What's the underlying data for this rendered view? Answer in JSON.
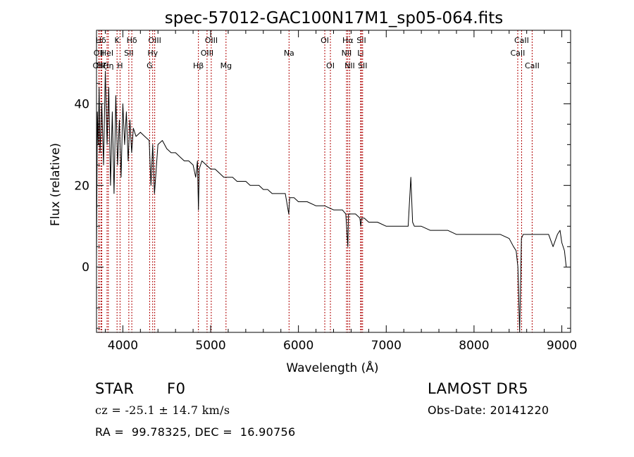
{
  "chart_data": {
    "type": "line",
    "title": "spec-57012-GAC100N17M1_sp05-064.fits",
    "xlabel": "Wavelength (Å)",
    "ylabel": "Flux (relative)",
    "xlim": [
      3700,
      9100
    ],
    "ylim": [
      -16,
      58
    ],
    "xticks": [
      4000,
      5000,
      6000,
      7000,
      8000,
      9000
    ],
    "yticks": [
      0,
      20,
      40
    ],
    "grid": false,
    "line_color": "#000000",
    "marker_color": "#b00000",
    "series": [
      {
        "x": [
          3700,
          3710,
          3720,
          3730,
          3740,
          3760,
          3780,
          3800,
          3820,
          3840,
          3860,
          3880,
          3900,
          3920,
          3940,
          3960,
          3980,
          4000,
          4020,
          4040,
          4060,
          4080,
          4100,
          4120,
          4150,
          4200,
          4250,
          4300,
          4320,
          4340,
          4360,
          4400,
          4450,
          4500,
          4550,
          4600,
          4650,
          4700,
          4750,
          4800,
          4830,
          4850,
          4861,
          4870,
          4900,
          4950,
          5000,
          5050,
          5100,
          5150,
          5200,
          5250,
          5300,
          5350,
          5400,
          5450,
          5500,
          5550,
          5600,
          5650,
          5700,
          5750,
          5800,
          5850,
          5890,
          5900,
          5950,
          6000,
          6100,
          6200,
          6300,
          6400,
          6500,
          6540,
          6563,
          6570,
          6600,
          6650,
          6700,
          6710,
          6720,
          6750,
          6800,
          6900,
          7000,
          7100,
          7200,
          7250,
          7280,
          7300,
          7320,
          7400,
          7500,
          7600,
          7700,
          7800,
          7900,
          8000,
          8100,
          8200,
          8300,
          8400,
          8450,
          8480,
          8500,
          8520,
          8540,
          8560,
          8600,
          8650,
          8700,
          8750,
          8800,
          8850,
          8900,
          8950,
          8980,
          9000,
          9030,
          9050
        ],
        "y": [
          2,
          38,
          30,
          44,
          28,
          40,
          25,
          48,
          30,
          44,
          20,
          38,
          18,
          42,
          25,
          36,
          22,
          40,
          30,
          38,
          26,
          36,
          28,
          34,
          32,
          33,
          32,
          31,
          20,
          30,
          18,
          30,
          31,
          29,
          28,
          28,
          27,
          26,
          26,
          25,
          22,
          26,
          14,
          24,
          26,
          25,
          24,
          24,
          23,
          22,
          22,
          22,
          21,
          21,
          21,
          20,
          20,
          20,
          19,
          19,
          18,
          18,
          18,
          18,
          13,
          17,
          17,
          16,
          16,
          15,
          15,
          14,
          14,
          13,
          5,
          13,
          13,
          13,
          12,
          10,
          12,
          12,
          11,
          11,
          10,
          10,
          10,
          10,
          22,
          11,
          10,
          10,
          9,
          9,
          9,
          8,
          8,
          8,
          8,
          8,
          8,
          7,
          5,
          4,
          0,
          -16,
          7,
          8,
          8,
          8,
          8,
          8,
          8,
          8,
          5,
          8,
          9,
          6,
          4,
          0
        ]
      }
    ],
    "line_markers": [
      {
        "label": "Hδ",
        "x": 3750,
        "row": 0
      },
      {
        "label": "OII",
        "x": 3727,
        "row": 1
      },
      {
        "label": "OIII",
        "x": 3730,
        "row": 2
      },
      {
        "label": "Hζ",
        "x": 3760,
        "row": 2
      },
      {
        "label": "HeI",
        "x": 3820,
        "row": 1
      },
      {
        "label": "Hη",
        "x": 3835,
        "row": 2
      },
      {
        "label": "K",
        "x": 3934,
        "row": 0
      },
      {
        "label": "H",
        "x": 3968,
        "row": 2
      },
      {
        "label": "SII",
        "x": 4068,
        "row": 1
      },
      {
        "label": "Hδ",
        "x": 4102,
        "row": 0
      },
      {
        "label": "OIII",
        "x": 4363,
        "row": 0
      },
      {
        "label": "Hγ",
        "x": 4340,
        "row": 1
      },
      {
        "label": "G",
        "x": 4305,
        "row": 2
      },
      {
        "label": "Hβ",
        "x": 4861,
        "row": 2
      },
      {
        "label": "OIII",
        "x": 5007,
        "row": 0
      },
      {
        "label": "OIII",
        "x": 4959,
        "row": 1
      },
      {
        "label": "Mg",
        "x": 5175,
        "row": 2
      },
      {
        "label": "Na",
        "x": 5893,
        "row": 1
      },
      {
        "label": "OI",
        "x": 6300,
        "row": 0
      },
      {
        "label": "OI",
        "x": 6364,
        "row": 2
      },
      {
        "label": "Hα",
        "x": 6563,
        "row": 0
      },
      {
        "label": "NII",
        "x": 6548,
        "row": 1
      },
      {
        "label": "NII",
        "x": 6584,
        "row": 2
      },
      {
        "label": "SII",
        "x": 6717,
        "row": 0
      },
      {
        "label": "Li",
        "x": 6708,
        "row": 1
      },
      {
        "label": "SII",
        "x": 6731,
        "row": 2
      },
      {
        "label": "CaII",
        "x": 8542,
        "row": 0
      },
      {
        "label": "CaII",
        "x": 8498,
        "row": 1
      },
      {
        "label": "CaII",
        "x": 8662,
        "row": 2
      }
    ]
  },
  "info": {
    "object_class": "STAR",
    "subclass": "F0",
    "survey": "LAMOST DR5",
    "cz": "cz = -25.1 ± 14.7 km/s",
    "obs_date": "Obs-Date: 20141220",
    "coords": "RA =  99.78325, DEC =  16.90756"
  }
}
